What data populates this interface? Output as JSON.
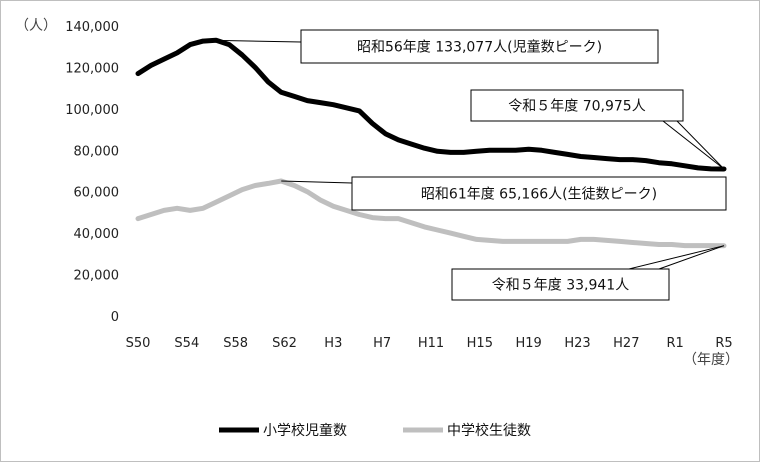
{
  "chart_data": {
    "type": "line",
    "x_labels": [
      "S50",
      "S54",
      "S58",
      "S62",
      "H3",
      "H7",
      "H11",
      "H15",
      "H19",
      "H23",
      "H27",
      "R1",
      "R5"
    ],
    "y_ticks": [
      "0",
      "20,000",
      "40,000",
      "60,000",
      "80,000",
      "100,000",
      "120,000",
      "140,000"
    ],
    "y_unit": "（人）",
    "x_unit": "（年度）",
    "ylim": [
      0,
      140000
    ],
    "grid": false,
    "legend_position": "bottom",
    "series": [
      {
        "name": "小学校児童数",
        "color": "#000000",
        "values": [
          117000,
          121000,
          124000,
          127000,
          131000,
          132700,
          133077,
          131000,
          126000,
          120000,
          113000,
          108000,
          106000,
          104000,
          103000,
          102000,
          100500,
          99000,
          93000,
          88000,
          85000,
          83000,
          81000,
          79500,
          79000,
          79000,
          79500,
          80000,
          80000,
          80000,
          80500,
          80000,
          79000,
          78000,
          77000,
          76500,
          76000,
          75500,
          75500,
          75000,
          74000,
          73500,
          72500,
          71500,
          71000,
          70975
        ]
      },
      {
        "name": "中学校生徒数",
        "color": "#bfbfbf",
        "values": [
          47000,
          49000,
          51000,
          52000,
          51000,
          52000,
          55000,
          58000,
          61000,
          63000,
          64000,
          65166,
          63000,
          60000,
          56000,
          53000,
          51000,
          49000,
          47500,
          47000,
          47000,
          45000,
          43000,
          41500,
          40000,
          38500,
          37000,
          36500,
          36000,
          36000,
          36000,
          36000,
          36000,
          36000,
          37000,
          37000,
          36500,
          36000,
          35500,
          35000,
          34500,
          34500,
          34000,
          34000,
          34000,
          33941
        ]
      }
    ],
    "annotations": [
      {
        "text": "昭和56年度 133,077人(児童数ピーク)",
        "series": 0,
        "point": 6
      },
      {
        "text": "令和５年度 70,975人",
        "series": 0,
        "point": 45
      },
      {
        "text": "昭和61年度 65,166人(生徒数ピーク)",
        "series": 1,
        "point": 11
      },
      {
        "text": "令和５年度 33,941人",
        "series": 1,
        "point": 45
      }
    ]
  }
}
